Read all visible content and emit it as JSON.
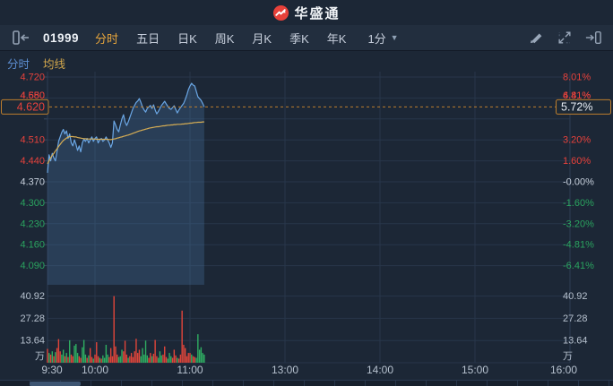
{
  "header": {
    "app_title": "华盛通"
  },
  "toolbar": {
    "stock_code": "01999",
    "tabs": [
      {
        "id": "minute",
        "label": "分时",
        "active": true
      },
      {
        "id": "five-day",
        "label": "五日",
        "active": false
      },
      {
        "id": "daily-k",
        "label": "日K",
        "active": false
      },
      {
        "id": "weekly-k",
        "label": "周K",
        "active": false
      },
      {
        "id": "monthly-k",
        "label": "月K",
        "active": false
      },
      {
        "id": "quarterly-k",
        "label": "季K",
        "active": false
      },
      {
        "id": "yearly-k",
        "label": "年K",
        "active": false
      }
    ],
    "interval": "1分",
    "icons": [
      "collapse-left-icon",
      "draw-icon",
      "fullscreen-icon",
      "dock-right-icon"
    ]
  },
  "legend": {
    "items": [
      {
        "id": "minute-line",
        "label": "分时",
        "color": "#5d8fd3"
      },
      {
        "id": "avg-line",
        "label": "均线",
        "color": "#d2a74c"
      }
    ]
  },
  "colors": {
    "up": "#e8423c",
    "down": "#2aa35f",
    "neutral": "#c7d0dc",
    "accent": "#bd7e2d",
    "price_line": "#6ba7e5",
    "price_fill": "rgba(77,121,174,0.28)",
    "avg_line": "#d6ad54",
    "grid": "#27364a",
    "edge": "#2e3d54",
    "axis_text": "#b6c1ce",
    "vol_up": "#e0453a",
    "vol_down": "#2fae62",
    "badge_bg": "#1d2936"
  },
  "chart_data": {
    "type": "line",
    "title": "01999 intraday 1-min chart",
    "base_price": 4.37,
    "session_minutes": 330,
    "last_price_label": "4.620",
    "last_pct_label": "5.72%",
    "price_axis": [
      {
        "t": "4.720",
        "v": 4.72,
        "k": "up"
      },
      {
        "t": "4.650",
        "v": 4.65,
        "k": "up"
      },
      {
        "t": "4.580",
        "v": 4.58,
        "k": "up"
      },
      {
        "t": "4.510",
        "v": 4.51,
        "k": "up"
      },
      {
        "t": "4.440",
        "v": 4.44,
        "k": "up"
      },
      {
        "t": "4.370",
        "v": 4.37,
        "k": "neutral"
      },
      {
        "t": "4.300",
        "v": 4.3,
        "k": "down"
      },
      {
        "t": "4.230",
        "v": 4.23,
        "k": "down"
      },
      {
        "t": "4.160",
        "v": 4.16,
        "k": "down"
      },
      {
        "t": "4.090",
        "v": 4.09,
        "k": "down"
      }
    ],
    "pct_axis": [
      {
        "t": "8.01%",
        "k": "up"
      },
      {
        "t": "6.41%",
        "k": "up"
      },
      {
        "t": "4.81%",
        "k": "up"
      },
      {
        "t": "3.20%",
        "k": "up"
      },
      {
        "t": "1.60%",
        "k": "up"
      },
      {
        "t": "-0.00%",
        "k": "neutral"
      },
      {
        "t": "-1.60%",
        "k": "down"
      },
      {
        "t": "-3.20%",
        "k": "down"
      },
      {
        "t": "-4.81%",
        "k": "down"
      },
      {
        "t": "-6.41%",
        "k": "down"
      }
    ],
    "vol_axis": [
      {
        "t": "40.92",
        "v": 40.92
      },
      {
        "t": "27.28",
        "v": 27.28
      },
      {
        "t": "13.64",
        "v": 13.64
      }
    ],
    "vol_unit": "万",
    "x_axis": [
      {
        "t": "9:30",
        "min": 0
      },
      {
        "t": "10:00",
        "min": 30
      },
      {
        "t": "11:00",
        "min": 90
      },
      {
        "t": "13:00",
        "min": 150
      },
      {
        "t": "14:00",
        "min": 210
      },
      {
        "t": "15:00",
        "min": 270
      },
      {
        "t": "16:00",
        "min": 330
      }
    ],
    "price": [
      4.4,
      4.46,
      4.44,
      4.465,
      4.45,
      4.44,
      4.47,
      4.505,
      4.52,
      4.535,
      4.545,
      4.53,
      4.54,
      4.515,
      4.53,
      4.5,
      4.49,
      4.51,
      4.495,
      4.475,
      4.49,
      4.47,
      4.5,
      4.512,
      4.505,
      4.515,
      4.5,
      4.51,
      4.52,
      4.505,
      4.515,
      4.52,
      4.5,
      4.51,
      4.515,
      4.505,
      4.51,
      4.52,
      4.51,
      4.5,
      4.485,
      4.5,
      4.573,
      4.56,
      4.545,
      4.537,
      4.56,
      4.58,
      4.594,
      4.57,
      4.558,
      4.57,
      4.585,
      4.6,
      4.615,
      4.625,
      4.635,
      4.64,
      4.648,
      4.635,
      4.62,
      4.61,
      4.603,
      4.615,
      4.62,
      4.625,
      4.615,
      4.627,
      4.61,
      4.597,
      4.605,
      4.615,
      4.625,
      4.632,
      4.639,
      4.63,
      4.622,
      4.615,
      4.612,
      4.618,
      4.624,
      4.612,
      4.6,
      4.61,
      4.618,
      4.625,
      4.632,
      4.645,
      4.66,
      4.678,
      4.69,
      4.699,
      4.693,
      4.69,
      4.672,
      4.654,
      4.648,
      4.642,
      4.632,
      4.62
    ],
    "avg": [
      4.43,
      4.44,
      4.45,
      4.458,
      4.465,
      4.473,
      4.48,
      4.488,
      4.495,
      4.502,
      4.508,
      4.512,
      4.516,
      4.519,
      4.521,
      4.521,
      4.521,
      4.52,
      4.52,
      4.518,
      4.517,
      4.516,
      4.515,
      4.514,
      4.514,
      4.513,
      4.513,
      4.513,
      4.513,
      4.513,
      4.513,
      4.512,
      4.512,
      4.512,
      4.512,
      4.512,
      4.512,
      4.512,
      4.512,
      4.511,
      4.511,
      4.512,
      4.513,
      4.514,
      4.516,
      4.517,
      4.519,
      4.52,
      4.522,
      4.523,
      4.525,
      4.526,
      4.528,
      4.53,
      4.532,
      4.534,
      4.536,
      4.538,
      4.54,
      4.541,
      4.543,
      4.544,
      4.546,
      4.547,
      4.549,
      4.55,
      4.551,
      4.552,
      4.553,
      4.554,
      4.554,
      4.555,
      4.556,
      4.557,
      4.557,
      4.558,
      4.559,
      4.559,
      4.56,
      4.56,
      4.561,
      4.561,
      4.562,
      4.562,
      4.562,
      4.563,
      4.563,
      4.564,
      4.564,
      4.565,
      4.566,
      4.566,
      4.567,
      4.568,
      4.568,
      4.569,
      4.569,
      4.569,
      4.57,
      4.57
    ],
    "volume": [
      8.5,
      6,
      5,
      7,
      4,
      6.5,
      9,
      14.5,
      7,
      5,
      8,
      4,
      6,
      3.5,
      13.8,
      5,
      4,
      10.5,
      11.5,
      6,
      4,
      3,
      9.5,
      14,
      5,
      3,
      4.5,
      9,
      3.5,
      2.5,
      5,
      12.6,
      4,
      3,
      2.5,
      4.5,
      3,
      11,
      5,
      3.5,
      9,
      4,
      40.9,
      10,
      5,
      3.5,
      4,
      8,
      7,
      13.5,
      5,
      3,
      4,
      6,
      3.5,
      7,
      14.7,
      6,
      8,
      4,
      9,
      5,
      13.6,
      4.5,
      3,
      6,
      4,
      5.5,
      14,
      4,
      3,
      7,
      4.5,
      5,
      10,
      3.5,
      2.5,
      6,
      4,
      3,
      8,
      4.5,
      3,
      2.5,
      5,
      32,
      11,
      9,
      4,
      6,
      6,
      5,
      4,
      3.5,
      3,
      17.5,
      8,
      9.5,
      6,
      5
    ],
    "volume_colors": "rgrgrgrrrggrgrgrrgggrrgggrgrrgrrrgrggggrrrrrrgggrrrgrrrrrrrgggggrrgrrrgggrrrgggrrrgrrrrrrrrgrrgggggg"
  }
}
